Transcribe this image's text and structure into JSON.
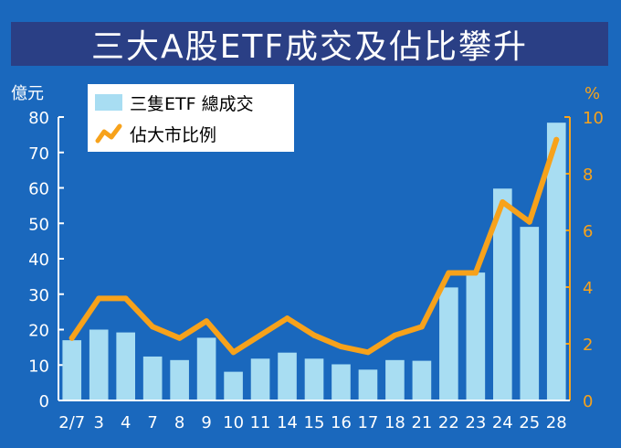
{
  "title": "三大A股ETF成交及佔比攀升",
  "colors": {
    "background": "#1a68bd",
    "title_bg": "#2a3f85",
    "bar": "#a8ddf2",
    "line": "#f7a21b",
    "axis_left": "#ffffff",
    "axis_right": "#f7a21b"
  },
  "legend": {
    "bar_label": "三隻ETF 總成交",
    "line_label": "佔大市比例"
  },
  "chart_data": {
    "type": "bar",
    "categories": [
      "2/7",
      "3",
      "4",
      "7",
      "8",
      "9",
      "10",
      "11",
      "14",
      "15",
      "16",
      "17",
      "18",
      "21",
      "22",
      "23",
      "24",
      "25",
      "28"
    ],
    "series": [
      {
        "name": "三隻ETF 總成交",
        "type": "bar",
        "axis": "left",
        "values": [
          17,
          20,
          19.2,
          12.4,
          11.4,
          17.7,
          8.1,
          11.8,
          13.5,
          11.8,
          10.2,
          8.7,
          11.4,
          11.2,
          31.9,
          36.1,
          59.8,
          49,
          78.4
        ]
      },
      {
        "name": "佔大市比例",
        "type": "line",
        "axis": "right",
        "values": [
          2.2,
          3.6,
          3.6,
          2.6,
          2.2,
          2.8,
          1.7,
          2.3,
          2.9,
          2.3,
          1.9,
          1.7,
          2.3,
          2.6,
          4.5,
          4.5,
          7.0,
          6.3,
          9.2
        ]
      }
    ],
    "y_left": {
      "unit": "億元",
      "ylim": [
        0,
        80
      ],
      "ticks": [
        "0",
        "10",
        "20",
        "30",
        "40",
        "50",
        "60",
        "70",
        "80"
      ]
    },
    "y_right": {
      "unit": "%",
      "ylim": [
        0,
        10
      ],
      "ticks": [
        "0",
        "2",
        "4",
        "6",
        "8",
        "10"
      ]
    },
    "grid": false,
    "legend_position": "top-left"
  }
}
